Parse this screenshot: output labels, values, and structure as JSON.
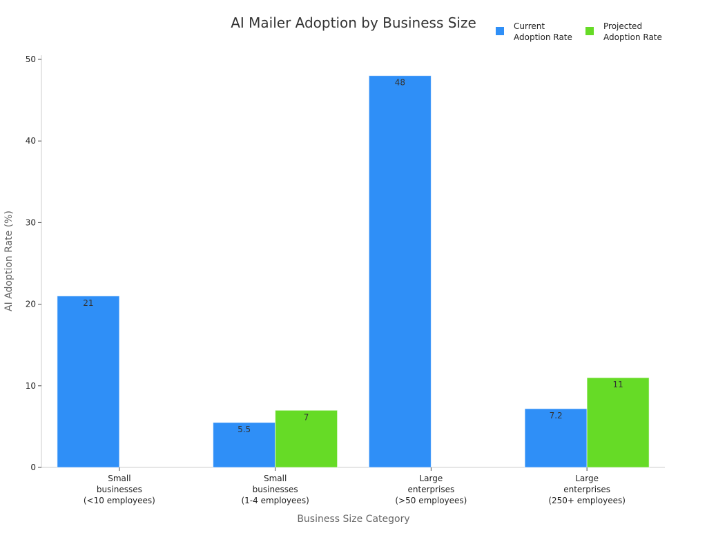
{
  "chart_data": {
    "type": "bar",
    "title": "AI Mailer Adoption by Business Size",
    "xlabel": "Business Size Category",
    "ylabel": "AI Adoption Rate (%)",
    "ylim": [
      0,
      50
    ],
    "yticks": [
      "0",
      "10",
      "20",
      "30",
      "40",
      "50"
    ],
    "categories": [
      [
        "Small",
        "businesses",
        "(<10 employees)"
      ],
      [
        "Small",
        "businesses",
        "(1-4 employees)"
      ],
      [
        "Large",
        "enterprises",
        "(>50 employees)"
      ],
      [
        "Large",
        "enterprises",
        "(250+ employees)"
      ]
    ],
    "series": [
      {
        "name": [
          "Current",
          "Adoption Rate"
        ],
        "color": "#2f8ff7",
        "values": [
          21,
          5.5,
          48,
          7.2
        ],
        "labels": [
          "21",
          "5.5",
          "48",
          "7.2"
        ]
      },
      {
        "name": [
          "Projected",
          "Adoption Rate"
        ],
        "color": "#66db26",
        "values": [
          null,
          7,
          null,
          11
        ],
        "labels": [
          "",
          "7",
          "",
          "11"
        ]
      }
    ],
    "legend": "top-right",
    "grid": false
  }
}
